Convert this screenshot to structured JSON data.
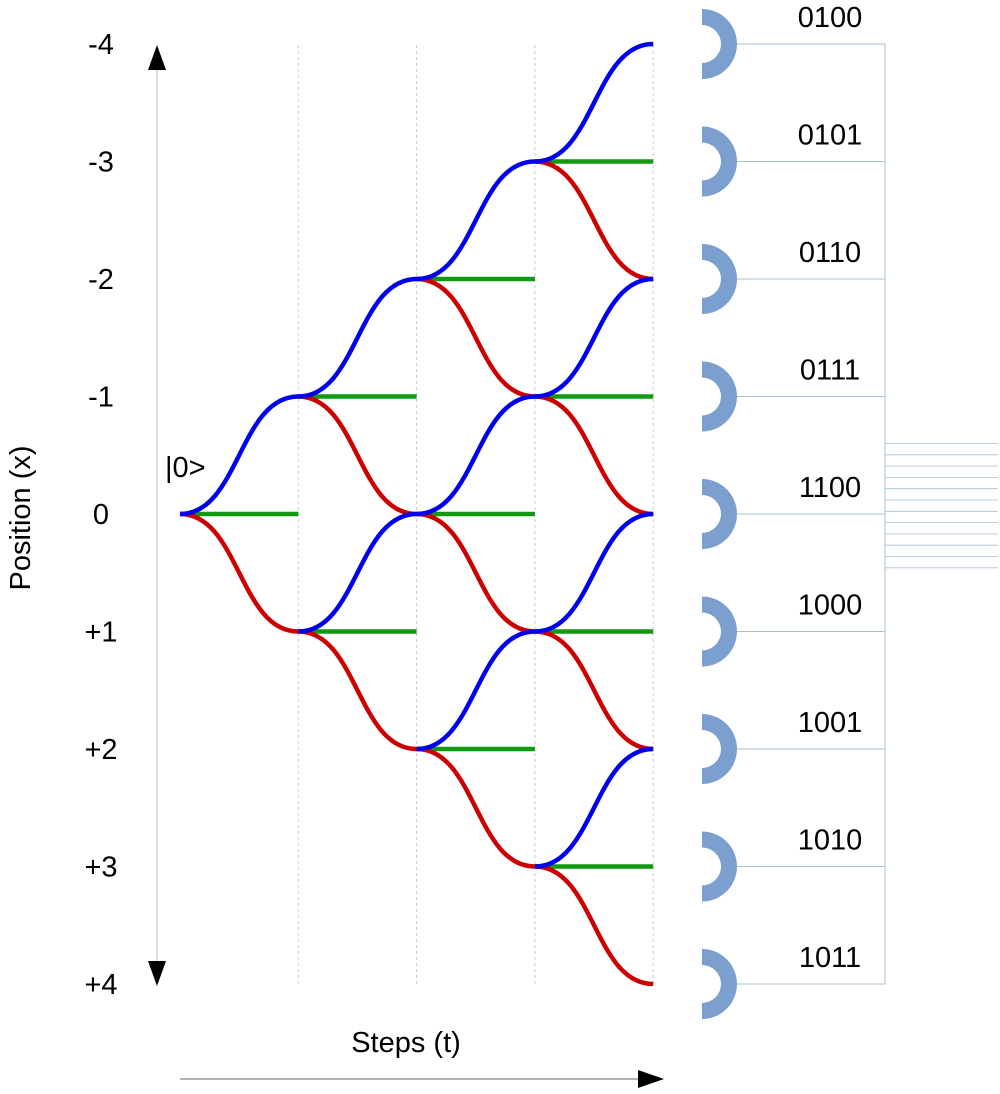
{
  "yaxis": {
    "label": "Position (x)",
    "ticks": [
      "-4",
      "-3",
      "-2",
      "-1",
      "0",
      "+1",
      "+2",
      "+3",
      "+4"
    ]
  },
  "xaxis": {
    "label": "Steps (t)"
  },
  "initial_state": "|0>",
  "detectors": [
    "0100",
    "0101",
    "0110",
    "0111",
    "1100",
    "1000",
    "1001",
    "1010",
    "1011"
  ],
  "colors": {
    "left_path": "#0000ee",
    "right_path": "#cc0000",
    "coin_link": "#119911",
    "detector": "#7ba0d0",
    "gridline": "#c8c8c8",
    "readout_line": "#a9bfd6"
  },
  "walk": {
    "steps": 4,
    "start_position": 0,
    "reachable": [
      [
        0
      ],
      [
        -1,
        1
      ],
      [
        -2,
        0,
        2
      ],
      [
        -3,
        -1,
        1,
        3
      ],
      [
        -4,
        -2,
        0,
        2,
        4
      ]
    ]
  }
}
